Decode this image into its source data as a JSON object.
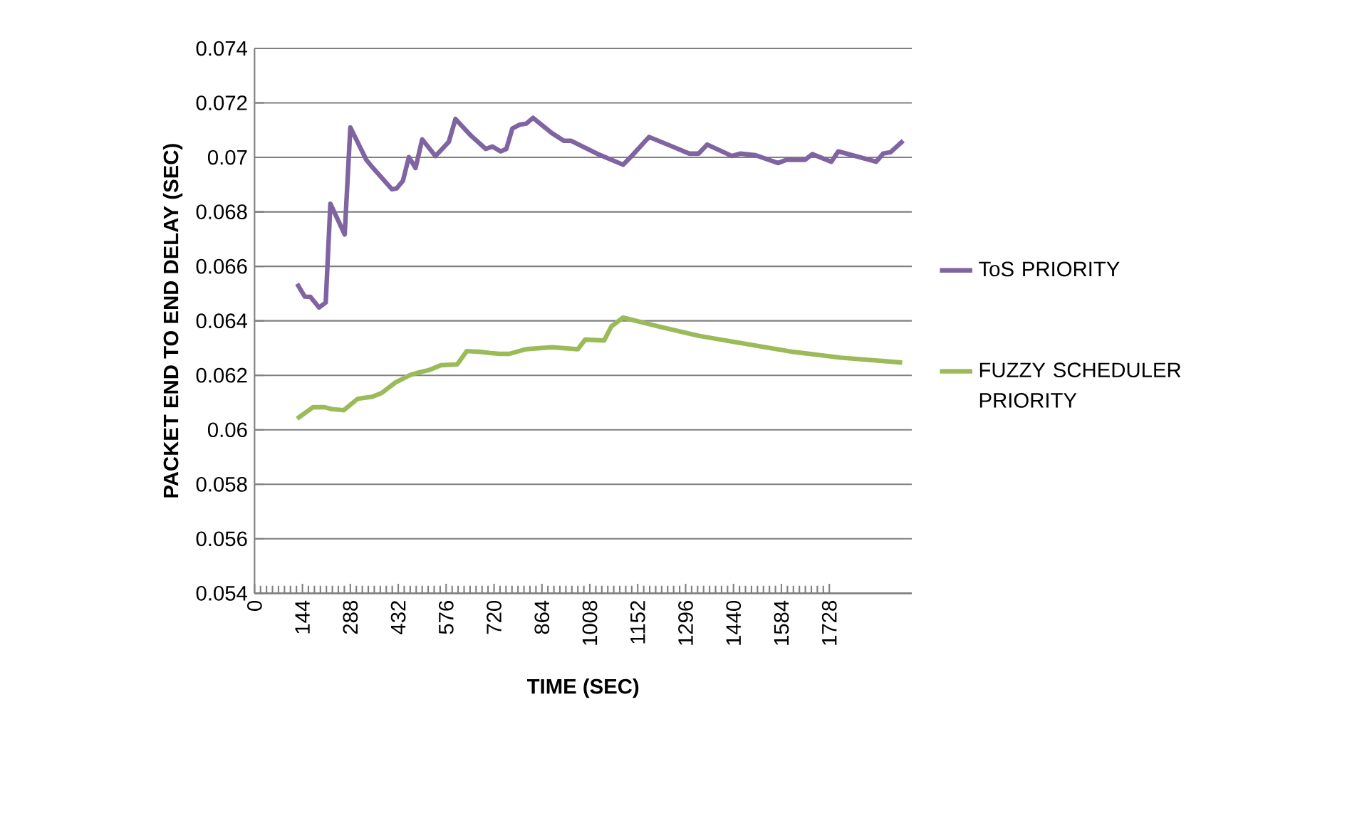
{
  "chart_data": {
    "type": "line",
    "xlabel": "TIME (SEC)",
    "ylabel": "PACKET END TO END DELAY (SEC)",
    "xlim": [
      0,
      1976
    ],
    "xticks": [
      0,
      144,
      288,
      432,
      576,
      720,
      864,
      1008,
      1152,
      1296,
      1440,
      1584,
      1728
    ],
    "ylim": [
      0.054,
      0.074
    ],
    "yticks": [
      0.054,
      0.056,
      0.058,
      0.06,
      0.062,
      0.064,
      0.066,
      0.068,
      0.07,
      0.072,
      0.074
    ],
    "grid": "y",
    "legend": "right",
    "marker": "none",
    "line_style": "solid",
    "series": [
      {
        "name": "ToS PRIORITY",
        "color": "#8064a2",
        "x": [
          128,
          151,
          168,
          194,
          214,
          228,
          271,
          288,
          336,
          350,
          413,
          427,
          446,
          464,
          484,
          504,
          544,
          584,
          604,
          652,
          695,
          715,
          740,
          757,
          775,
          797,
          817,
          837,
          894,
          930,
          951,
          1029,
          1108,
          1136,
          1186,
          1250,
          1307,
          1335,
          1361,
          1435,
          1460,
          1506,
          1574,
          1599,
          1655,
          1677,
          1734,
          1755,
          1869,
          1890,
          1912,
          1950
        ],
        "values": [
          0.06536,
          0.06489,
          0.06488,
          0.06449,
          0.06467,
          0.0683,
          0.06717,
          0.0711,
          0.06991,
          0.0697,
          0.06883,
          0.06886,
          0.06914,
          0.07001,
          0.06961,
          0.07066,
          0.07005,
          0.07057,
          0.07141,
          0.07078,
          0.07031,
          0.0704,
          0.07022,
          0.07031,
          0.07106,
          0.0712,
          0.07124,
          0.07145,
          0.07089,
          0.07061,
          0.07061,
          0.07014,
          0.06973,
          0.07008,
          0.07075,
          0.07043,
          0.07014,
          0.07014,
          0.07047,
          0.07005,
          0.07014,
          0.07008,
          0.06979,
          0.06991,
          0.06991,
          0.07012,
          0.06984,
          0.07022,
          0.06984,
          0.07014,
          0.07019,
          0.07061
        ]
      },
      {
        "name": "FUZZY SCHEDULER PRIORITY",
        "color": "#9bbb59",
        "x": [
          128,
          176,
          211,
          232,
          268,
          310,
          353,
          382,
          424,
          467,
          498,
          524,
          560,
          609,
          638,
          680,
          709,
          737,
          766,
          816,
          894,
          972,
          994,
          1051,
          1073,
          1108,
          1222,
          1335,
          1478,
          1620,
          1762,
          1947
        ],
        "values": [
          0.06041,
          0.06083,
          0.06083,
          0.06076,
          0.06072,
          0.06114,
          0.06121,
          0.06135,
          0.06174,
          0.06201,
          0.06212,
          0.06219,
          0.06237,
          0.0624,
          0.06289,
          0.06286,
          0.06282,
          0.06279,
          0.06279,
          0.06296,
          0.06303,
          0.06296,
          0.06331,
          0.06328,
          0.0638,
          0.06412,
          0.06377,
          0.06345,
          0.06315,
          0.06286,
          0.06265,
          0.06247
        ]
      }
    ]
  }
}
